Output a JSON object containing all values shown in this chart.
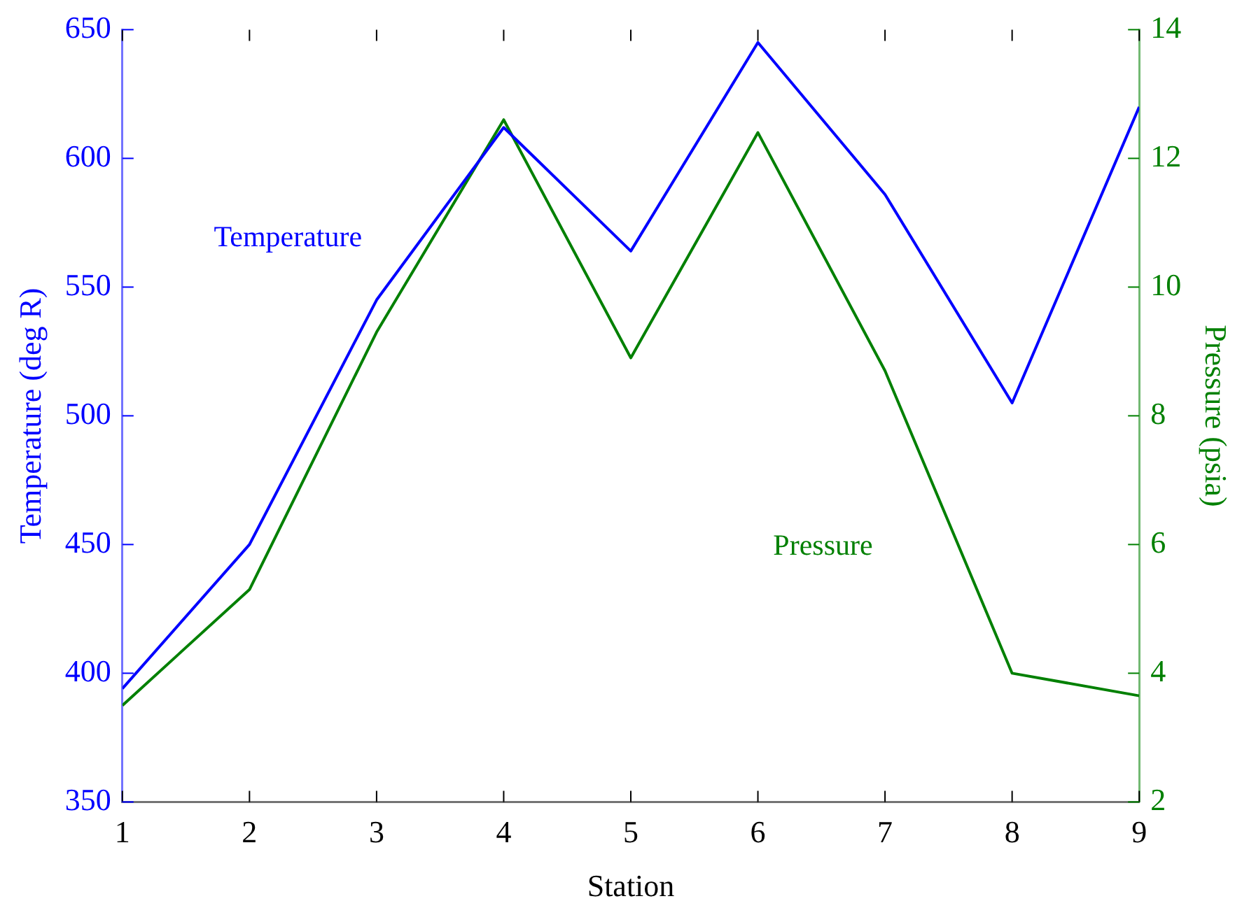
{
  "chart_data": {
    "type": "line",
    "xlabel": "Station",
    "ylabel": "Temperature (deg R)",
    "y2label": "Pressure (psia)",
    "x": [
      1,
      2,
      3,
      4,
      5,
      6,
      7,
      8,
      9
    ],
    "xlim": [
      1,
      9
    ],
    "xticks": [
      1,
      2,
      3,
      4,
      5,
      6,
      7,
      8,
      9
    ],
    "ylim": [
      350,
      650
    ],
    "yticks": [
      350,
      400,
      450,
      500,
      550,
      600,
      650
    ],
    "y2lim": [
      2,
      14
    ],
    "y2ticks": [
      2,
      4,
      6,
      8,
      10,
      12,
      14
    ],
    "grid": false,
    "legend": false,
    "marker": "none",
    "line_style": "solid",
    "series": [
      {
        "name": "Temperature",
        "color": "#0000ff",
        "values": [
          394,
          450,
          545,
          612,
          564,
          645,
          586,
          505,
          620
        ]
      },
      {
        "name": "Pressure",
        "color": "#008000",
        "axis": "y2",
        "values": [
          3.5,
          5.3,
          9.3,
          12.6,
          8.9,
          12.4,
          8.7,
          4.0,
          3.65
        ]
      }
    ]
  }
}
